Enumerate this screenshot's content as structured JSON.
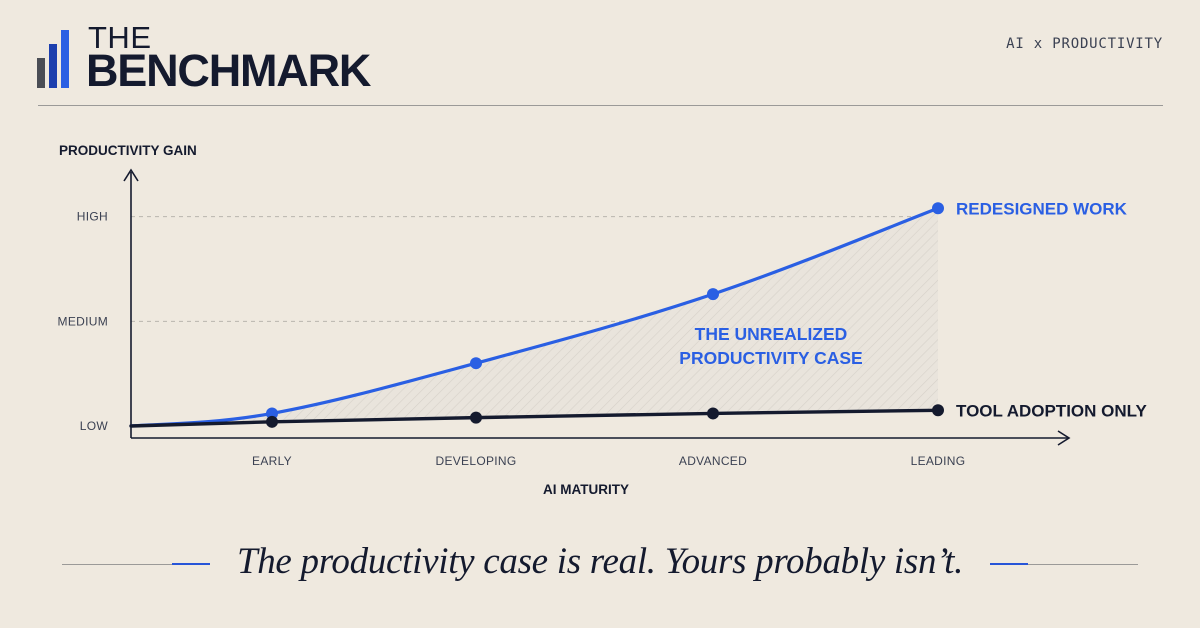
{
  "brand": {
    "top": "THE",
    "main": "BENCHMARK",
    "tagline": "AI x PRODUCTIVITY"
  },
  "colors": {
    "accent": "#2a5fe3",
    "dark": "#141a2e",
    "background": "#efe9df"
  },
  "chart_data": {
    "type": "line",
    "ylabel": "PRODUCTIVITY GAIN",
    "xlabel": "AI MATURITY",
    "categories": [
      "EARLY",
      "DEVELOPING",
      "ADVANCED",
      "LEADING"
    ],
    "y_ticks": [
      "LOW",
      "MEDIUM",
      "HIGH"
    ],
    "ylim": [
      0,
      2.35
    ],
    "x_origin_value": 0,
    "x_values": [
      1,
      2,
      3,
      4
    ],
    "grid": "dashed lines at MEDIUM and HIGH",
    "legend": "direct labels at line ends",
    "series": [
      {
        "name": "REDESIGNED WORK",
        "color": "#2a5fe3",
        "origin_value": 0,
        "values": [
          0.12,
          0.6,
          1.26,
          2.08
        ]
      },
      {
        "name": "TOOL ADOPTION ONLY",
        "color": "#141a2e",
        "origin_value": 0,
        "values": [
          0.04,
          0.08,
          0.12,
          0.15
        ]
      }
    ],
    "annotation": [
      "THE UNREALIZED",
      "PRODUCTIVITY CASE"
    ]
  },
  "footer": {
    "caption": "The productivity case is real. Yours probably isn’t."
  }
}
